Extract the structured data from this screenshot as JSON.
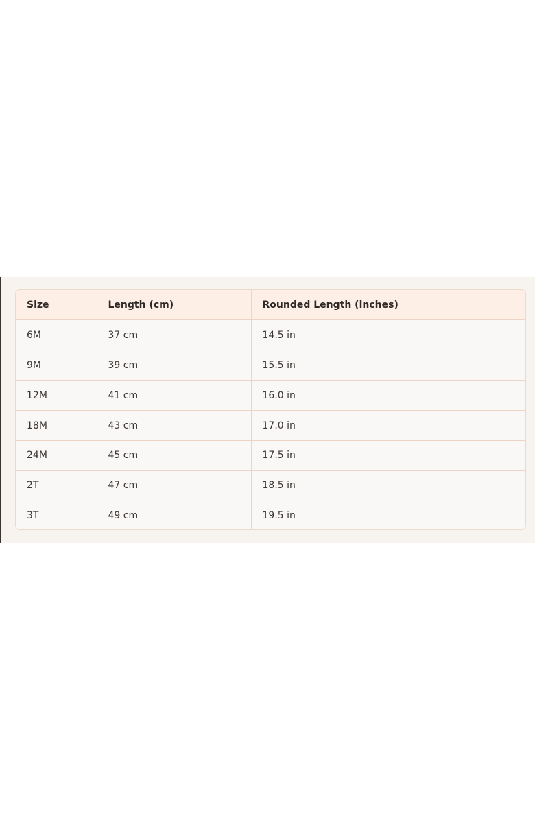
{
  "table": {
    "header": [
      "Size",
      "Length (cm)",
      "Rounded Length (inches)"
    ],
    "rows": [
      [
        "6M",
        "37 cm",
        "14.5 in"
      ],
      [
        "9M",
        "39 cm",
        "15.5 in"
      ],
      [
        "12M",
        "41 cm",
        "16.0 in"
      ],
      [
        "18M",
        "43 cm",
        "17.0 in"
      ],
      [
        "24M",
        "45 cm",
        "17.5 in"
      ],
      [
        "2T",
        "47 cm",
        "18.5 in"
      ],
      [
        "3T",
        "49 cm",
        "19.5 in"
      ]
    ]
  }
}
